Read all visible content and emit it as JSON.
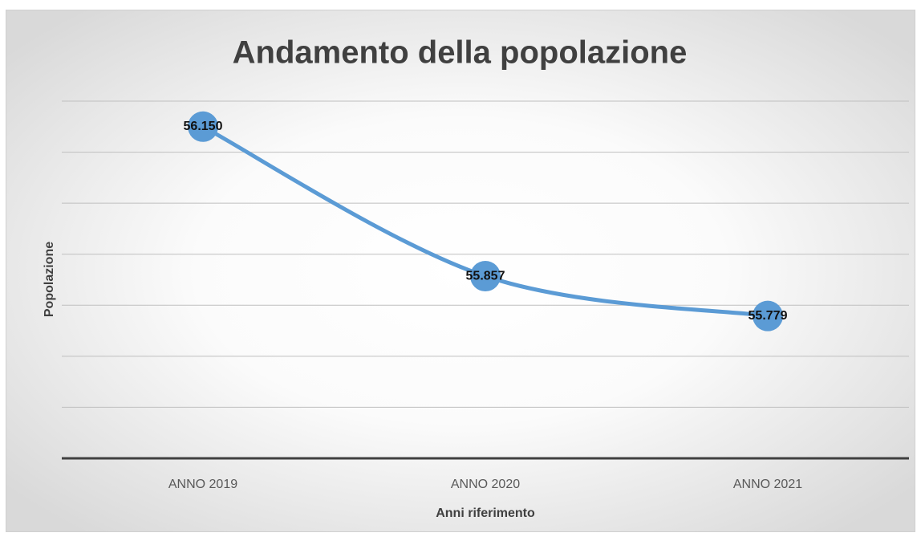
{
  "chart_data": {
    "type": "line",
    "title": "Andamento della popolazione",
    "x_label": "Anni riferimento",
    "y_label": "Popolazione",
    "categories": [
      "ANNO 2019",
      "ANNO 2020",
      "ANNO 2021"
    ],
    "values": [
      56150,
      55857,
      55779
    ],
    "value_labels": [
      "56.150",
      "55.857",
      "55.779"
    ],
    "color": "#5b9bd5",
    "ylim": [
      55500,
      56200
    ],
    "yticks": [
      55500,
      55600,
      55700,
      55800,
      55900,
      56000,
      56100,
      56200
    ],
    "grid": true,
    "smooth": true
  }
}
